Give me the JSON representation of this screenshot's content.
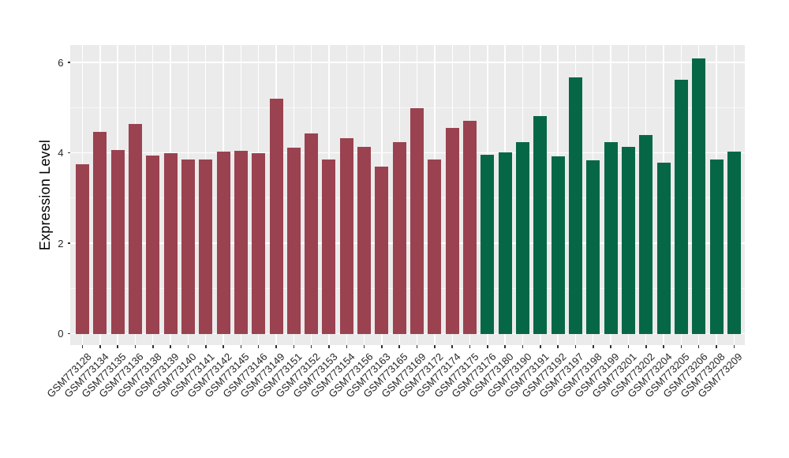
{
  "chart_data": {
    "type": "bar",
    "title": "",
    "xlabel": "",
    "ylabel": "Expression Level",
    "ylim": [
      -0.25,
      6.38
    ],
    "yticks": [
      0,
      2,
      4,
      6
    ],
    "yticks_minor": [
      1,
      3,
      5
    ],
    "grid": true,
    "legend": "none",
    "x_tick_rotation": 45,
    "panel_bg": "#EBEBEB",
    "grid_color": "#FFFFFF",
    "tick_color": "#333333",
    "group_colors": {
      "group1": "#9A4250",
      "group2": "#066746"
    },
    "bars": [
      {
        "label": "GSM773128",
        "value": 3.75,
        "group": "group1"
      },
      {
        "label": "GSM773134",
        "value": 4.47,
        "group": "group1"
      },
      {
        "label": "GSM773135",
        "value": 4.07,
        "group": "group1"
      },
      {
        "label": "GSM773136",
        "value": 4.63,
        "group": "group1"
      },
      {
        "label": "GSM773138",
        "value": 3.94,
        "group": "group1"
      },
      {
        "label": "GSM773139",
        "value": 4.0,
        "group": "group1"
      },
      {
        "label": "GSM773140",
        "value": 3.86,
        "group": "group1"
      },
      {
        "label": "GSM773141",
        "value": 3.86,
        "group": "group1"
      },
      {
        "label": "GSM773142",
        "value": 4.03,
        "group": "group1"
      },
      {
        "label": "GSM773145",
        "value": 4.04,
        "group": "group1"
      },
      {
        "label": "GSM773146",
        "value": 4.0,
        "group": "group1"
      },
      {
        "label": "GSM773149",
        "value": 5.2,
        "group": "group1"
      },
      {
        "label": "GSM773151",
        "value": 4.12,
        "group": "group1"
      },
      {
        "label": "GSM773152",
        "value": 4.43,
        "group": "group1"
      },
      {
        "label": "GSM773153",
        "value": 3.86,
        "group": "group1"
      },
      {
        "label": "GSM773154",
        "value": 4.33,
        "group": "group1"
      },
      {
        "label": "GSM773156",
        "value": 4.13,
        "group": "group1"
      },
      {
        "label": "GSM773163",
        "value": 3.7,
        "group": "group1"
      },
      {
        "label": "GSM773165",
        "value": 4.24,
        "group": "group1"
      },
      {
        "label": "GSM773169",
        "value": 4.99,
        "group": "group1"
      },
      {
        "label": "GSM773172",
        "value": 3.86,
        "group": "group1"
      },
      {
        "label": "GSM773174",
        "value": 4.55,
        "group": "group1"
      },
      {
        "label": "GSM773175",
        "value": 4.71,
        "group": "group1"
      },
      {
        "label": "GSM773176",
        "value": 3.95,
        "group": "group2"
      },
      {
        "label": "GSM773180",
        "value": 4.01,
        "group": "group2"
      },
      {
        "label": "GSM773190",
        "value": 4.23,
        "group": "group2"
      },
      {
        "label": "GSM773191",
        "value": 4.81,
        "group": "group2"
      },
      {
        "label": "GSM773192",
        "value": 3.93,
        "group": "group2"
      },
      {
        "label": "GSM773197",
        "value": 5.67,
        "group": "group2"
      },
      {
        "label": "GSM773198",
        "value": 3.84,
        "group": "group2"
      },
      {
        "label": "GSM773199",
        "value": 4.24,
        "group": "group2"
      },
      {
        "label": "GSM773201",
        "value": 4.13,
        "group": "group2"
      },
      {
        "label": "GSM773202",
        "value": 4.39,
        "group": "group2"
      },
      {
        "label": "GSM773204",
        "value": 3.78,
        "group": "group2"
      },
      {
        "label": "GSM773205",
        "value": 5.62,
        "group": "group2"
      },
      {
        "label": "GSM773206",
        "value": 6.09,
        "group": "group2"
      },
      {
        "label": "GSM773208",
        "value": 3.86,
        "group": "group2"
      },
      {
        "label": "GSM773209",
        "value": 4.03,
        "group": "group2"
      }
    ]
  }
}
